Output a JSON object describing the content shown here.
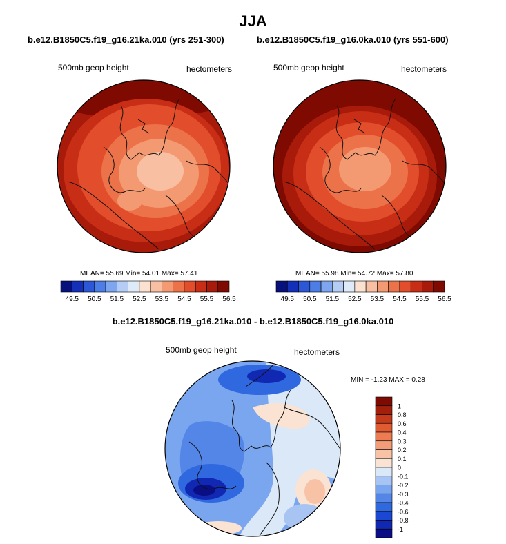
{
  "title": "JJA",
  "panels": [
    {
      "case": "b.e12.B1850C5.f19_g16.21ka.010 (yrs 251-300)",
      "variable": "500mb geop height",
      "units": "hectometers",
      "stats": "MEAN=  55.69  Min=  54.01  Max=  57.41"
    },
    {
      "case": "b.e12.B1850C5.f19_g16.0ka.010 (yrs 551-600)",
      "variable": "500mb geop height",
      "units": "hectometers",
      "stats": "MEAN=  55.98  Min=  54.72  Max=  57.80"
    }
  ],
  "difference": {
    "title": "b.e12.B1850C5.f19_g16.21ka.010 - b.e12.B1850C5.f19_g16.0ka.010",
    "variable": "500mb geop height",
    "units": "hectometers",
    "minmax": "MIN =  -1.23 MAX =   0.28"
  },
  "colors": {
    "field_ramp": [
      "#08107c",
      "#1530b8",
      "#2c58d8",
      "#4c7ee6",
      "#7ea5ef",
      "#b5cdf4",
      "#dfeaf8",
      "#fbe1d0",
      "#f8bfa2",
      "#f39a72",
      "#ec7349",
      "#e24e2c",
      "#c82e16",
      "#a81a0a",
      "#7e0a02"
    ],
    "diff_ramp": [
      "#0a0e84",
      "#1028b2",
      "#1a48d2",
      "#3068e0",
      "#5486e8",
      "#7aa6ef",
      "#a8c4f3",
      "#dbe8f7",
      "#fbe3d4",
      "#f8c2a6",
      "#f39c78",
      "#ee7c52",
      "#e05a32",
      "#c43a1a",
      "#a0200c",
      "#7e0a02"
    ]
  },
  "chart_data": [
    {
      "type": "heatmap",
      "projection": "polar stereographic",
      "variable": "500mb geop height",
      "units": "hectometers",
      "colorbar_ticks": [
        "49.5",
        "50.5",
        "51.5",
        "52.5",
        "53.5",
        "54.5",
        "55.5",
        "56.5"
      ],
      "mean": 55.69,
      "min": 54.01,
      "max": 57.41
    },
    {
      "type": "heatmap",
      "projection": "polar stereographic",
      "variable": "500mb geop height",
      "units": "hectometers",
      "colorbar_ticks": [
        "49.5",
        "50.5",
        "51.5",
        "52.5",
        "53.5",
        "54.5",
        "55.5",
        "56.5"
      ],
      "mean": 55.98,
      "min": 54.72,
      "max": 57.8
    },
    {
      "type": "heatmap",
      "projection": "polar stereographic",
      "variable": "500mb geop height",
      "units": "hectometers",
      "colorbar_ticks": [
        "1",
        "0.8",
        "0.6",
        "0.4",
        "0.3",
        "0.2",
        "0.1",
        "0",
        "-0.1",
        "-0.2",
        "-0.3",
        "-0.4",
        "-0.6",
        "-0.8",
        "-1"
      ],
      "min": -1.23,
      "max": 0.28
    }
  ]
}
